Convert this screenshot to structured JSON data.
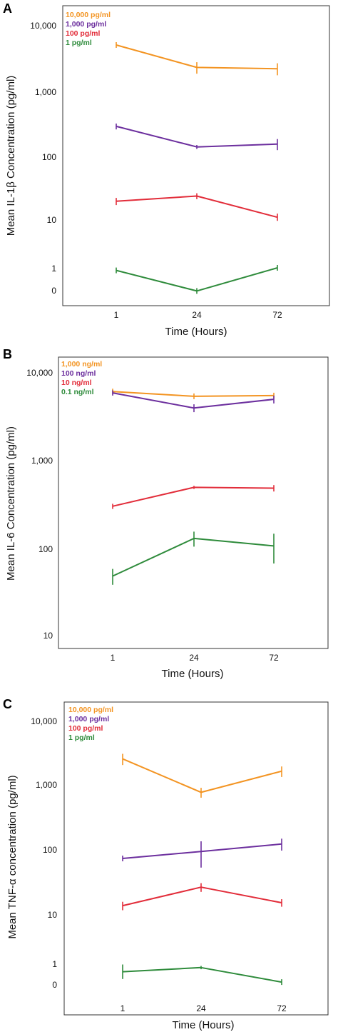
{
  "colors": {
    "orange": "#f39422",
    "purple": "#6c2f9e",
    "red": "#e22d3a",
    "green": "#2e8b3b"
  },
  "chart_data": [
    {
      "panel": "A",
      "type": "line",
      "ylabel": "Mean IL-1β Concentration (pg/ml)",
      "xlabel": "Time (Hours)",
      "x": [
        "1",
        "24",
        "72"
      ],
      "y_scale": "log",
      "y_ticks": [
        "10,000",
        "1,000",
        "100",
        "10",
        "1",
        "0"
      ],
      "series": [
        {
          "name": "10,000 pg/ml",
          "color": "orange",
          "values": [
            5000,
            2300,
            2200
          ],
          "err": [
            0,
            450,
            450
          ]
        },
        {
          "name": "1,000 pg/ml",
          "color": "purple",
          "values": [
            290,
            140,
            155
          ],
          "err": [
            30,
            10,
            30
          ]
        },
        {
          "name": "100 pg/ml",
          "color": "red",
          "values": [
            19,
            23,
            10.5
          ],
          "err": [
            2.5,
            2.5,
            1.5
          ]
        },
        {
          "name": "1 pg/ml",
          "color": "green",
          "values": [
            0.9,
            0.1,
            1
          ],
          "err": [
            0,
            0,
            0
          ]
        }
      ]
    },
    {
      "panel": "B",
      "type": "line",
      "ylabel": "Mean IL-6 Concentration (pg/ml)",
      "xlabel": "Time (Hours)",
      "x": [
        "1",
        "24",
        "72"
      ],
      "y_scale": "log",
      "y_ticks": [
        "10,000",
        "1,000",
        "100",
        "10"
      ],
      "series": [
        {
          "name": "1,000 ng/ml",
          "color": "orange",
          "values": [
            6000,
            5300,
            5400
          ],
          "err": [
            0,
            0,
            0
          ]
        },
        {
          "name": "100 ng/ml",
          "color": "purple",
          "values": [
            5800,
            3900,
            4900
          ],
          "err": [
            400,
            400,
            500
          ]
        },
        {
          "name": "10 ng/ml",
          "color": "red",
          "values": [
            300,
            490,
            480
          ],
          "err": [
            20,
            20,
            40
          ]
        },
        {
          "name": "0.1 ng/ml",
          "color": "green",
          "values": [
            48,
            130,
            107
          ],
          "err": [
            10,
            25,
            40
          ]
        }
      ]
    },
    {
      "panel": "C",
      "type": "line",
      "ylabel": "Mean TNF-α concentration (pg/ml)",
      "xlabel": "Time (Hours)",
      "x": [
        "1",
        "24",
        "72"
      ],
      "y_scale": "log",
      "y_ticks": [
        "10,000",
        "1,000",
        "100",
        "10",
        "1",
        "0"
      ],
      "series": [
        {
          "name": "10,000 pg/ml",
          "color": "orange",
          "values": [
            2500,
            750,
            1600
          ],
          "err": [
            500,
            130,
            300
          ]
        },
        {
          "name": "1,000 pg/ml",
          "color": "purple",
          "values": [
            72,
            92,
            120
          ],
          "err": [
            0,
            40,
            25
          ]
        },
        {
          "name": "100 pg/ml",
          "color": "red",
          "values": [
            13.5,
            26,
            15
          ],
          "err": [
            2,
            4,
            2
          ]
        },
        {
          "name": "1 pg/ml",
          "color": "green",
          "values": [
            0.6,
            0.8,
            0.1
          ],
          "err": [
            0.35,
            0.08,
            0
          ]
        }
      ]
    }
  ]
}
